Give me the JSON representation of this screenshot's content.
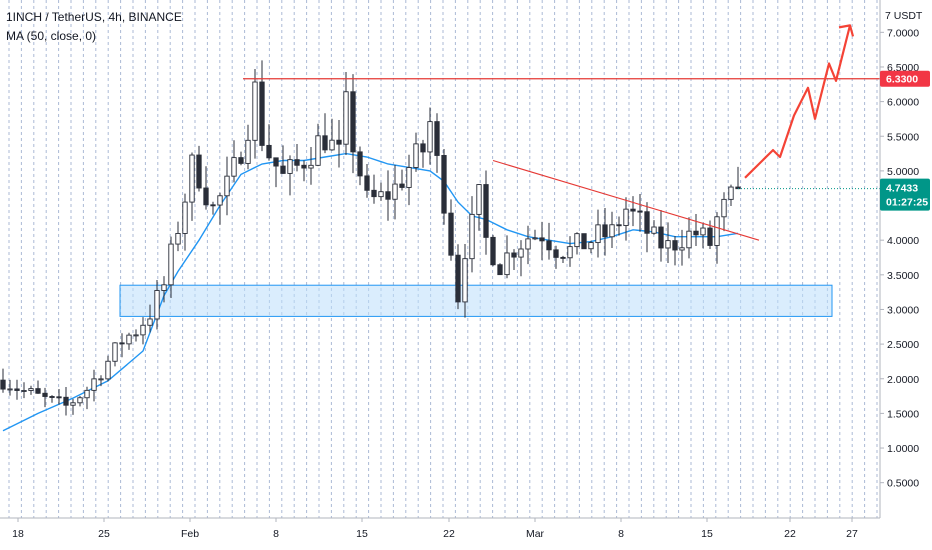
{
  "legend": {
    "symbol_line": "1INCH / TetherUS, 4h, BINANCE",
    "ma_line": "MA (50, close, 0)"
  },
  "colors": {
    "up": "#26a69a",
    "down": "#ef5350",
    "candle_body": "#2a2e39",
    "ma": "#2196f3",
    "resistance": "#e53935",
    "zone_fill": "#bbdefb",
    "zone_border": "#2196f3",
    "arrow": "#f44336",
    "current_price_badge": "#009688",
    "resistance_badge": "#f23645",
    "grid": "#90a4c8"
  },
  "chart_data": {
    "type": "candlestick",
    "timeframe": "4h",
    "y_axis": {
      "unit": "USDT",
      "ticks": [
        "7.0000",
        "6.5000",
        "6.0000",
        "5.5000",
        "5.0000",
        "4.0000",
        "3.5000",
        "3.0000",
        "2.5000",
        "2.0000",
        "1.5000",
        "1.0000",
        "0.5000"
      ],
      "range": [
        0.25,
        7.25
      ]
    },
    "x_axis": {
      "ticks": [
        "18",
        "25",
        "Feb",
        "8",
        "15",
        "22",
        "Mar",
        "8",
        "15",
        "22",
        "27"
      ]
    },
    "indicators": [
      {
        "name": "MA (50, close, 0)"
      }
    ],
    "price_path": [
      [
        0,
        1.98
      ],
      [
        3,
        1.82
      ],
      [
        6,
        1.7
      ],
      [
        9,
        1.6
      ],
      [
        12,
        1.85
      ],
      [
        15,
        2.25
      ],
      [
        17,
        2.55
      ],
      [
        19,
        2.7
      ],
      [
        21,
        2.95
      ],
      [
        23,
        3.35
      ],
      [
        25,
        4.2
      ],
      [
        27,
        5.05
      ],
      [
        28,
        4.95
      ],
      [
        30,
        4.45
      ],
      [
        32,
        4.75
      ],
      [
        33,
        5.0
      ],
      [
        35,
        5.7
      ],
      [
        36,
        6.15
      ],
      [
        37,
        5.5
      ],
      [
        38,
        5.25
      ],
      [
        40,
        4.9
      ],
      [
        42,
        5.05
      ],
      [
        44,
        5.3
      ],
      [
        46,
        5.5
      ],
      [
        48,
        5.2
      ],
      [
        49,
        5.9
      ],
      [
        50,
        5.4
      ],
      [
        52,
        4.55
      ],
      [
        54,
        4.6
      ],
      [
        56,
        4.75
      ],
      [
        58,
        5.05
      ],
      [
        60,
        5.3
      ],
      [
        61,
        5.7
      ],
      [
        62,
        5.1
      ],
      [
        63,
        4.6
      ],
      [
        65,
        3.2
      ],
      [
        66,
        3.9
      ],
      [
        67,
        4.2
      ],
      [
        68,
        4.6
      ],
      [
        69,
        4.0
      ],
      [
        71,
        3.65
      ],
      [
        73,
        3.9
      ],
      [
        75,
        4.05
      ],
      [
        77,
        4.1
      ],
      [
        79,
        3.9
      ],
      [
        81,
        3.85
      ],
      [
        83,
        3.95
      ],
      [
        85,
        4.05
      ],
      [
        87,
        4.1
      ],
      [
        89,
        4.45
      ],
      [
        91,
        4.25
      ],
      [
        93,
        4.0
      ],
      [
        95,
        3.9
      ],
      [
        97,
        4.05
      ],
      [
        99,
        4.1
      ],
      [
        101,
        3.95
      ],
      [
        102,
        4.3
      ],
      [
        103,
        4.45
      ],
      [
        104,
        4.6
      ],
      [
        105,
        4.74
      ]
    ],
    "ma_path": [
      [
        0,
        1.25
      ],
      [
        5,
        1.5
      ],
      [
        10,
        1.72
      ],
      [
        15,
        1.97
      ],
      [
        20,
        2.4
      ],
      [
        23,
        3.2
      ],
      [
        25,
        3.55
      ],
      [
        28,
        4.0
      ],
      [
        31,
        4.5
      ],
      [
        34,
        4.95
      ],
      [
        37,
        5.1
      ],
      [
        40,
        5.15
      ],
      [
        43,
        5.15
      ],
      [
        46,
        5.2
      ],
      [
        49,
        5.25
      ],
      [
        52,
        5.2
      ],
      [
        55,
        5.1
      ],
      [
        58,
        5.05
      ],
      [
        61,
        5.0
      ],
      [
        63,
        4.85
      ],
      [
        65,
        4.55
      ],
      [
        67,
        4.35
      ],
      [
        69,
        4.3
      ],
      [
        72,
        4.15
      ],
      [
        75,
        4.05
      ],
      [
        78,
        4.0
      ],
      [
        81,
        3.95
      ],
      [
        84,
        3.98
      ],
      [
        87,
        4.05
      ],
      [
        90,
        4.15
      ],
      [
        93,
        4.12
      ],
      [
        96,
        4.05
      ],
      [
        99,
        4.05
      ],
      [
        102,
        4.05
      ],
      [
        105,
        4.1
      ]
    ],
    "annotations": {
      "resistance_price": 6.33,
      "resistance_label": "6.3300",
      "support_zone": [
        2.9,
        3.35
      ],
      "descending_trendline": [
        [
          70,
          5.15
        ],
        [
          108,
          4.0
        ]
      ],
      "projection": [
        [
          106,
          4.9
        ],
        [
          110,
          5.3
        ],
        [
          111,
          5.2
        ],
        [
          113,
          5.8
        ],
        [
          115,
          6.2
        ],
        [
          116,
          5.75
        ],
        [
          118,
          6.55
        ],
        [
          119,
          6.3
        ],
        [
          121,
          7.1
        ]
      ]
    },
    "current_price": {
      "value": 4.7433,
      "label": "4.7433",
      "countdown": "01:27:25"
    }
  }
}
